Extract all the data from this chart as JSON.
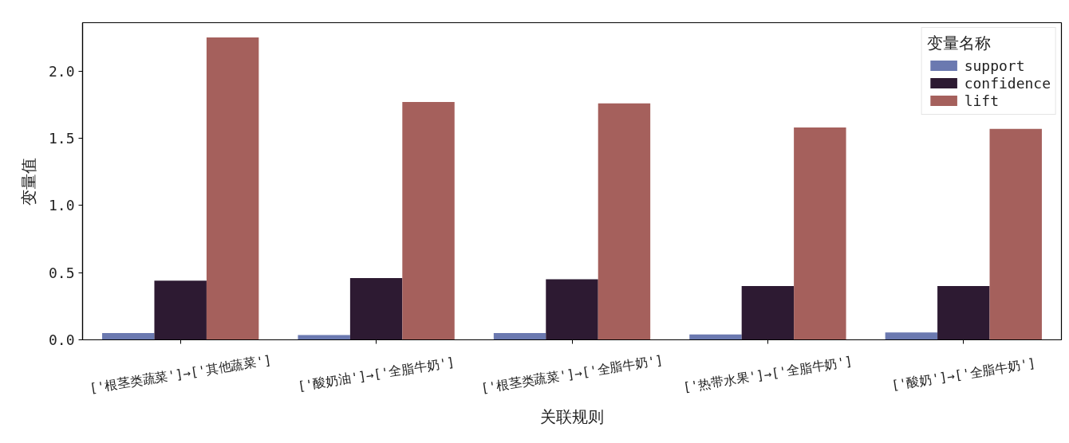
{
  "chart_data": {
    "type": "bar",
    "xlabel": "关联规则",
    "ylabel": "变量值",
    "legend_title": "变量名称",
    "categories": [
      "['根茎类蔬菜']→['其他蔬菜']",
      "['酸奶油']→['全脂牛奶']",
      "['根茎类蔬菜']→['全脂牛奶']",
      "['热带水果']→['全脂牛奶']",
      "['酸奶']→['全脂牛奶']"
    ],
    "series": [
      {
        "name": "support",
        "color": "#6b79b0",
        "values": [
          0.05,
          0.035,
          0.05,
          0.04,
          0.055
        ]
      },
      {
        "name": "confidence",
        "color": "#2d1a32",
        "values": [
          0.44,
          0.46,
          0.45,
          0.4,
          0.4
        ]
      },
      {
        "name": "lift",
        "color": "#a5605c",
        "values": [
          2.25,
          1.77,
          1.76,
          1.58,
          1.57
        ]
      }
    ],
    "ylim": [
      0,
      2.36
    ],
    "yticks": [
      {
        "value": 0,
        "label": "0.0"
      },
      0.5,
      {
        "value": 1,
        "label": "1.0"
      },
      1.5,
      {
        "value": 2,
        "label": "2.0"
      }
    ],
    "legend": "top right"
  }
}
